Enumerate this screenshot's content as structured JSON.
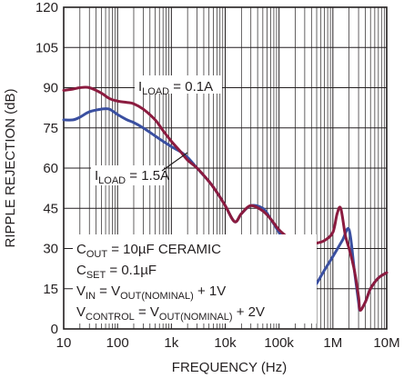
{
  "chart_data": {
    "type": "line",
    "title": "",
    "xlabel": "FREQUENCY (Hz)",
    "ylabel": "RIPPLE REJECTION (dB)",
    "x_scale": "log",
    "xlim": [
      10,
      10000000
    ],
    "ylim": [
      0,
      120
    ],
    "x_tick_values": [
      10,
      100,
      1000,
      10000,
      100000,
      1000000,
      10000000
    ],
    "x_tick_labels": [
      "10",
      "100",
      "1k",
      "10k",
      "100k",
      "1M",
      "10M"
    ],
    "y_tick_values": [
      0,
      15,
      30,
      45,
      60,
      75,
      90,
      105,
      120
    ],
    "y_tick_labels": [
      "0",
      "15",
      "30",
      "45",
      "60",
      "75",
      "90",
      "105",
      "120"
    ],
    "grid": true,
    "series": [
      {
        "label_main": "I",
        "label_sub": "LOAD",
        "label_value": " = 0.1A",
        "color": "#8b1b3f",
        "x": [
          10,
          15,
          20,
          30,
          50,
          70,
          100,
          150,
          200,
          300,
          500,
          700,
          1000,
          1500,
          2000,
          3000,
          5000,
          7000,
          10000,
          15000,
          20000,
          30000,
          50000,
          70000,
          100000,
          150000,
          200000,
          300000,
          400000,
          500000,
          700000,
          1000000,
          1200000,
          1400000,
          1700000,
          2000000,
          2500000,
          3000000,
          3200000,
          4000000,
          5000000,
          7000000,
          10000000
        ],
        "y": [
          89,
          89.5,
          90,
          90,
          88,
          86,
          85,
          84.5,
          84,
          82,
          78,
          74,
          70,
          66,
          63,
          60,
          55,
          51,
          46,
          40,
          43,
          46,
          44,
          41,
          37,
          34,
          33,
          32,
          32,
          32,
          33,
          36,
          43,
          45,
          35,
          30,
          22,
          12,
          7,
          10,
          15,
          19,
          21
        ]
      },
      {
        "label_main": "I",
        "label_sub": "LOAD",
        "label_value": " = 1.5A",
        "color": "#3a4fa0",
        "x": [
          10,
          15,
          20,
          30,
          50,
          70,
          100,
          150,
          200,
          300,
          500,
          700,
          1000,
          1500,
          2000,
          3000,
          5000,
          7000,
          10000,
          15000,
          20000,
          30000,
          50000,
          70000,
          100000,
          150000,
          200000,
          300000,
          350000,
          400000,
          500000,
          700000,
          1000000,
          1500000,
          2000000,
          2500000,
          3000000,
          3200000,
          4000000,
          5000000,
          7000000,
          10000000
        ],
        "y": [
          78,
          78,
          79,
          81,
          82,
          82,
          80,
          78,
          77,
          75,
          72,
          70,
          68,
          66,
          64,
          60,
          55,
          51,
          46,
          40,
          43,
          46,
          45,
          41,
          36,
          30,
          24,
          17,
          15,
          15,
          17,
          22,
          27,
          33,
          37,
          22,
          10,
          7,
          10,
          15,
          19,
          21
        ]
      }
    ],
    "annotations": [
      {
        "main": "C",
        "sub": "OUT",
        "rest": " = 10µF CERAMIC"
      },
      {
        "main": "C",
        "sub": "SET",
        "rest": " = 0.1µF"
      },
      {
        "main": "V",
        "sub": "IN",
        "mid": " = V",
        "sub2": "OUT(NOMINAL)",
        "rest": " + 1V"
      },
      {
        "main": "V",
        "sub": "CONTROL",
        "mid": " = V",
        "sub2": "OUT(NOMINAL)",
        "rest": " + 2V"
      }
    ]
  }
}
